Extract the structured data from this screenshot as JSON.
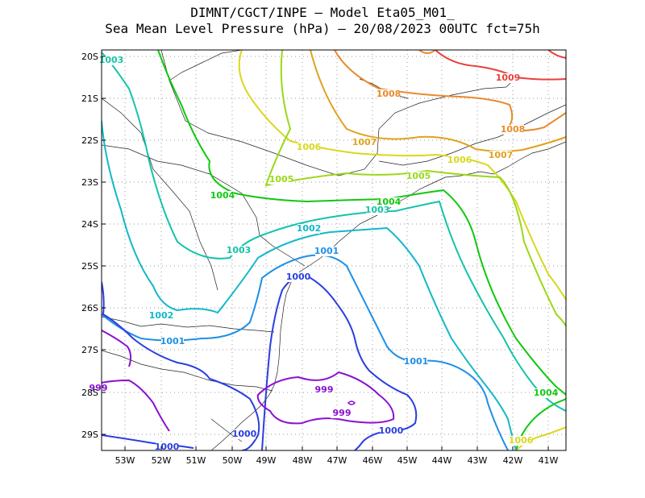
{
  "title": {
    "line1": "DIMNT/CGCT/INPE –  Model Eta05_M01_",
    "line2": "Sea Mean Level Pressure (hPa) – 20/08/2023 00UTC fct=75h"
  },
  "axes": {
    "lat_labels": [
      "20S",
      "21S",
      "22S",
      "23S",
      "24S",
      "25S",
      "26S",
      "27S",
      "28S",
      "29S"
    ],
    "lon_labels": [
      "53W",
      "52W",
      "51W",
      "50W",
      "49W",
      "48W",
      "47W",
      "46W",
      "45W",
      "44W",
      "43W",
      "42W",
      "41W"
    ]
  },
  "contour_labels": [
    {
      "text": "1003",
      "color": "#13c4a8"
    },
    {
      "text": "1009",
      "color": "#e8403a"
    },
    {
      "text": "1008",
      "color": "#e88a2e"
    },
    {
      "text": "1008",
      "color": "#e88a2e"
    },
    {
      "text": "1007",
      "color": "#e0a21e"
    },
    {
      "text": "1007",
      "color": "#e0a21e"
    },
    {
      "text": "1006",
      "color": "#d8d81e"
    },
    {
      "text": "1006",
      "color": "#d8d81e"
    },
    {
      "text": "1006",
      "color": "#d8d81e"
    },
    {
      "text": "1005",
      "color": "#9cd818"
    },
    {
      "text": "1005",
      "color": "#9cd818"
    },
    {
      "text": "1004",
      "color": "#10c810"
    },
    {
      "text": "1004",
      "color": "#10c810"
    },
    {
      "text": "1004",
      "color": "#10c810"
    },
    {
      "text": "1003",
      "color": "#13c4a8"
    },
    {
      "text": "1003",
      "color": "#13c4a8"
    },
    {
      "text": "1002",
      "color": "#12b8c8"
    },
    {
      "text": "1002",
      "color": "#12b8c8"
    },
    {
      "text": "1001",
      "color": "#1e90e6"
    },
    {
      "text": "1001",
      "color": "#1e90e6"
    },
    {
      "text": "1001",
      "color": "#1e90e6"
    },
    {
      "text": "1000",
      "color": "#2a3ee0"
    },
    {
      "text": "1000",
      "color": "#2a3ee0"
    },
    {
      "text": "1000",
      "color": "#2a3ee0"
    },
    {
      "text": "1000",
      "color": "#2a3ee0"
    },
    {
      "text": "999",
      "color": "#8a10d0"
    },
    {
      "text": "999",
      "color": "#8a10d0"
    },
    {
      "text": "999",
      "color": "#8a10d0"
    }
  ]
}
